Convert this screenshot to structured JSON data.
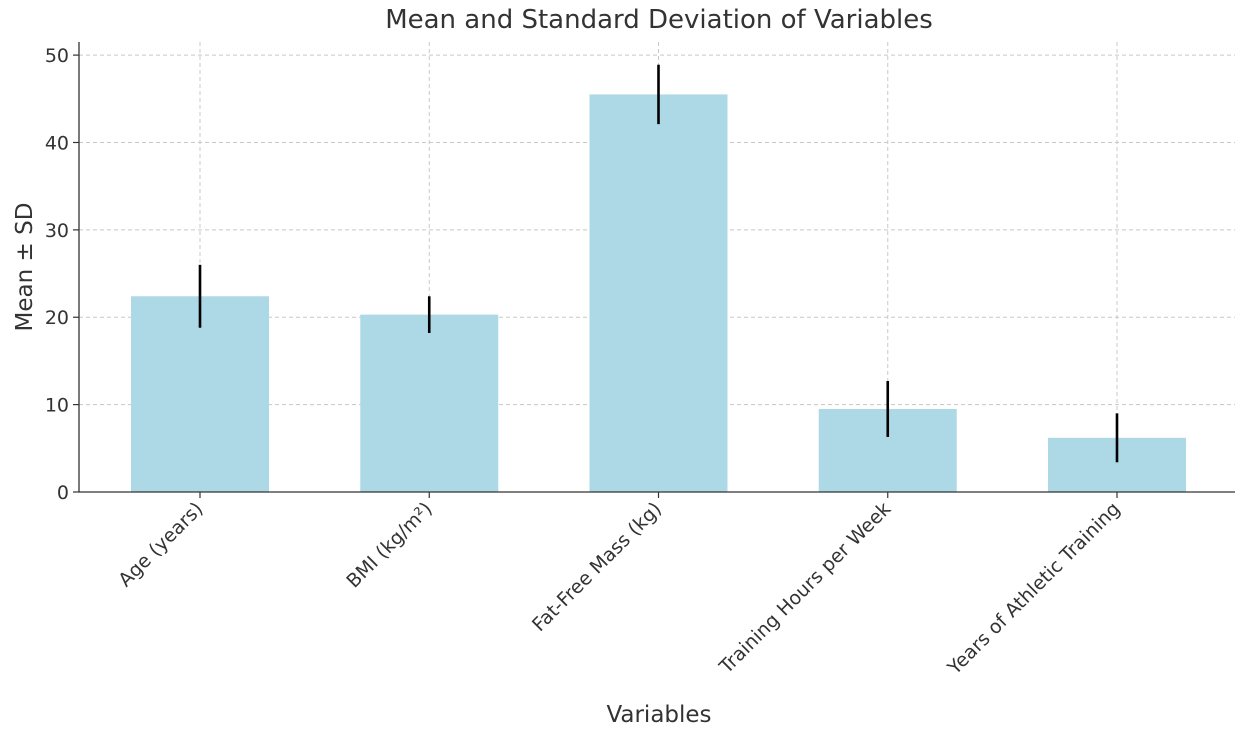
{
  "chart_data": {
    "type": "bar",
    "title": "Mean and Standard Deviation of Variables",
    "xlabel": "Variables",
    "ylabel": "Mean ± SD",
    "categories": [
      "Age (years)",
      "BMI (kg/m²)",
      "Fat-Free Mass (kg)",
      "Training Hours per Week",
      "Years of Athletic Training"
    ],
    "values": [
      22.4,
      20.3,
      45.5,
      9.5,
      6.2
    ],
    "errors": [
      3.6,
      2.1,
      3.4,
      3.2,
      2.8
    ],
    "ylim": [
      0,
      51.5
    ],
    "yticks": [
      0,
      10,
      20,
      30,
      40,
      50
    ],
    "grid": true,
    "bar_color": "#add8e6",
    "error_color": "#000000"
  }
}
